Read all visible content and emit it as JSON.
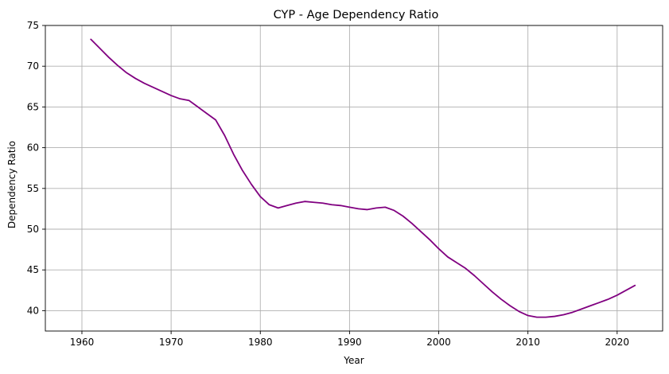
{
  "chart_data": {
    "type": "line",
    "title": "CYP - Age Dependency Ratio",
    "xlabel": "Year",
    "ylabel": "Dependency Ratio",
    "xlim": [
      1955.9,
      2025.1
    ],
    "ylim": [
      37.5,
      75
    ],
    "xticks": [
      1960,
      1970,
      1980,
      1990,
      2000,
      2010,
      2020
    ],
    "yticks": [
      40,
      45,
      50,
      55,
      60,
      65,
      70,
      75
    ],
    "grid": true,
    "line_color": "#800080",
    "series": [
      {
        "x": [
          1961,
          1962,
          1963,
          1964,
          1965,
          1966,
          1967,
          1968,
          1969,
          1970,
          1971,
          1972,
          1973,
          1974,
          1975,
          1976,
          1977,
          1978,
          1979,
          1980,
          1981,
          1982,
          1983,
          1984,
          1985,
          1986,
          1987,
          1988,
          1989,
          1990,
          1991,
          1992,
          1993,
          1994,
          1995,
          1996,
          1997,
          1998,
          1999,
          2000,
          2001,
          2002,
          2003,
          2004,
          2005,
          2006,
          2007,
          2008,
          2009,
          2010,
          2011,
          2012,
          2013,
          2014,
          2015,
          2016,
          2017,
          2018,
          2019,
          2020,
          2021,
          2022
        ],
        "values": [
          73.3,
          72.2,
          71.1,
          70.1,
          69.2,
          68.5,
          67.9,
          67.4,
          66.9,
          66.4,
          66.0,
          65.8,
          65.0,
          64.2,
          63.4,
          61.5,
          59.2,
          57.2,
          55.5,
          54.0,
          53.0,
          52.6,
          52.9,
          53.2,
          53.4,
          53.3,
          53.2,
          53.0,
          52.9,
          52.7,
          52.5,
          52.4,
          52.6,
          52.7,
          52.3,
          51.6,
          50.7,
          49.7,
          48.7,
          47.6,
          46.6,
          45.9,
          45.2,
          44.3,
          43.3,
          42.3,
          41.4,
          40.6,
          39.9,
          39.4,
          39.2,
          39.2,
          39.3,
          39.5,
          39.8,
          40.2,
          40.6,
          41.0,
          41.4,
          41.9,
          42.5,
          43.1
        ]
      }
    ]
  }
}
